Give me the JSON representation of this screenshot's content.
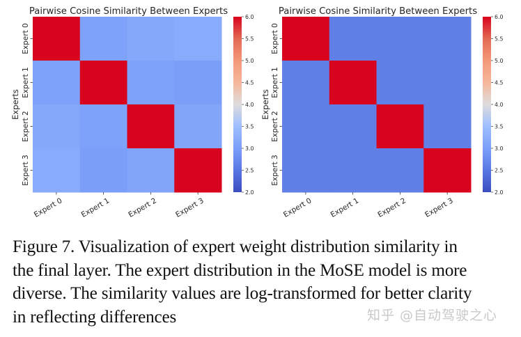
{
  "chart_data": [
    {
      "type": "heatmap",
      "title": "Pairwise Cosine Similarity Between Experts",
      "xlabel": "",
      "ylabel": "Experts",
      "x_categories": [
        "Expert 0",
        "Expert 1",
        "Expert 2",
        "Expert 3"
      ],
      "y_categories": [
        "Expert 0",
        "Expert 1",
        "Expert 2",
        "Expert 3"
      ],
      "values": [
        [
          6.0,
          3.05,
          3.15,
          3.2
        ],
        [
          3.05,
          6.0,
          3.05,
          3.0
        ],
        [
          3.15,
          3.05,
          6.0,
          3.1
        ],
        [
          3.2,
          3.0,
          3.1,
          6.0
        ]
      ],
      "colormap": "coolwarm",
      "vmin": 2.0,
      "vmax": 6.0,
      "colorbar_ticks": [
        "2.0",
        "2.5",
        "3.0",
        "3.5",
        "4.0",
        "4.5",
        "5.0",
        "5.5",
        "6.0"
      ],
      "colorbar_position": "right"
    },
    {
      "type": "heatmap",
      "title": "Pairwise Cosine Similarity Between Experts",
      "xlabel": "",
      "ylabel": "Experts",
      "x_categories": [
        "Expert 0",
        "Expert 1",
        "Expert 2",
        "Expert 3"
      ],
      "y_categories": [
        "Expert 0",
        "Expert 1",
        "Expert 2",
        "Expert 3"
      ],
      "values": [
        [
          6.0,
          2.6,
          2.6,
          2.6
        ],
        [
          2.6,
          6.0,
          2.6,
          2.6
        ],
        [
          2.6,
          2.6,
          6.0,
          2.6
        ],
        [
          2.6,
          2.6,
          2.6,
          6.0
        ]
      ],
      "colormap": "coolwarm",
      "vmin": 2.0,
      "vmax": 6.0,
      "colorbar_ticks": [
        "2.0",
        "2.5",
        "3.0",
        "3.5",
        "4.0",
        "4.5",
        "5.0",
        "5.5",
        "6.0"
      ],
      "colorbar_position": "right"
    }
  ],
  "caption": {
    "lines": [
      "Figure 7.  Visualization of expert weight distribution similarity in",
      "the final layer. The expert distribution in the MoSE model is more",
      "diverse. The similarity values are log-transformed for better clarity",
      "in reflecting differences"
    ]
  },
  "watermark": "知乎 @自动驾驶之心"
}
